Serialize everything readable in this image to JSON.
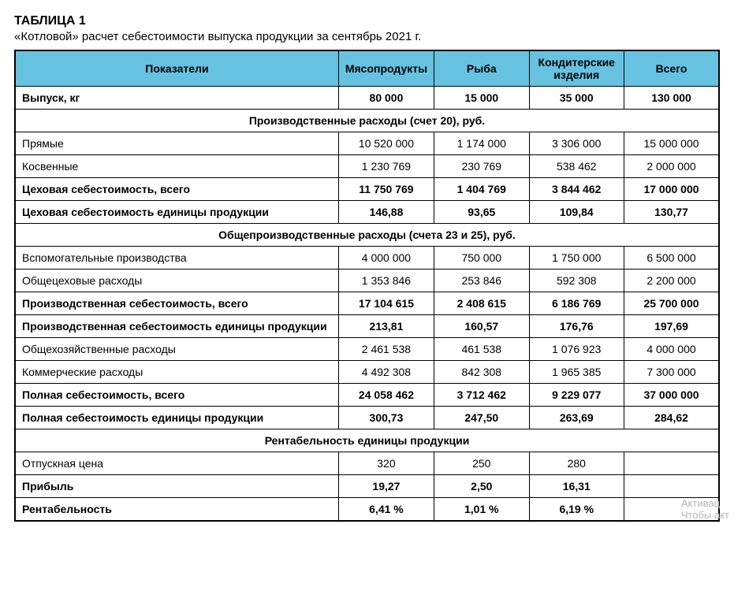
{
  "title": "ТАБЛИЦА 1",
  "subtitle": "«Котловой» расчет себестоимости выпуска продукции за сентябрь 2021 г.",
  "columns": [
    "Показатели",
    "Мясопродукты",
    "Рыба",
    "Кондитерские изделия",
    "Всего"
  ],
  "rows": [
    {
      "type": "data",
      "bold": true,
      "label": "Выпуск, кг",
      "values": [
        "80 000",
        "15 000",
        "35 000",
        "130 000"
      ]
    },
    {
      "type": "section",
      "label": "Производственные расходы (счет 20), руб."
    },
    {
      "type": "data",
      "bold": false,
      "label": "Прямые",
      "values": [
        "10 520 000",
        "1 174 000",
        "3 306 000",
        "15 000 000"
      ]
    },
    {
      "type": "data",
      "bold": false,
      "label": "Косвенные",
      "values": [
        "1 230 769",
        "230 769",
        "538 462",
        "2 000 000"
      ]
    },
    {
      "type": "data",
      "bold": true,
      "label": "Цеховая себестоимость, всего",
      "values": [
        "11 750 769",
        "1 404 769",
        "3 844 462",
        "17 000 000"
      ]
    },
    {
      "type": "data",
      "bold": true,
      "label": "Цеховая себестоимость единицы продукции",
      "values": [
        "146,88",
        "93,65",
        "109,84",
        "130,77"
      ]
    },
    {
      "type": "section",
      "label": "Общепроизводственные расходы (счета 23 и 25), руб."
    },
    {
      "type": "data",
      "bold": false,
      "label": "Вспомогательные производства",
      "values": [
        "4 000 000",
        "750 000",
        "1 750 000",
        "6 500 000"
      ]
    },
    {
      "type": "data",
      "bold": false,
      "label": "Общецеховые расходы",
      "values": [
        "1 353 846",
        "253 846",
        "592 308",
        "2 200 000"
      ]
    },
    {
      "type": "data",
      "bold": true,
      "label": "Производственная себестоимость, всего",
      "values": [
        "17 104 615",
        "2 408 615",
        "6 186 769",
        "25 700 000"
      ]
    },
    {
      "type": "data",
      "bold": true,
      "label": "Производственная себестоимость единицы продукции",
      "values": [
        "213,81",
        "160,57",
        "176,76",
        "197,69"
      ]
    },
    {
      "type": "data",
      "bold": false,
      "label": "Общехозяйственные расходы",
      "values": [
        "2 461 538",
        "461 538",
        "1 076 923",
        "4 000 000"
      ]
    },
    {
      "type": "data",
      "bold": false,
      "label": "Коммерческие расходы",
      "values": [
        "4 492 308",
        "842 308",
        "1 965 385",
        "7 300 000"
      ]
    },
    {
      "type": "data",
      "bold": true,
      "label": "Полная себестоимость, всего",
      "values": [
        "24 058 462",
        "3 712 462",
        "9 229 077",
        "37 000 000"
      ]
    },
    {
      "type": "data",
      "bold": true,
      "label": "Полная себестоимость единицы продукции",
      "values": [
        "300,73",
        "247,50",
        "263,69",
        "284,62"
      ]
    },
    {
      "type": "section",
      "label": "Рентабельность единицы продукции"
    },
    {
      "type": "data",
      "bold": false,
      "label": "Отпускная цена",
      "values": [
        "320",
        "250",
        "280",
        ""
      ]
    },
    {
      "type": "data",
      "bold": true,
      "label": "Прибыль",
      "values": [
        "19,27",
        "2,50",
        "16,31",
        ""
      ]
    },
    {
      "type": "data",
      "bold": true,
      "label": "Рентабельность",
      "values": [
        "6,41 %",
        "1,01 %",
        "6,19 %",
        ""
      ]
    }
  ],
  "watermark": {
    "line1": "Активац",
    "line2": "Чтобы акт"
  },
  "styling": {
    "header_bg": "#66c2e0",
    "border_color": "#000000",
    "font_size_body": 14,
    "font_size_title": 16,
    "font_size_subtitle": 15
  }
}
